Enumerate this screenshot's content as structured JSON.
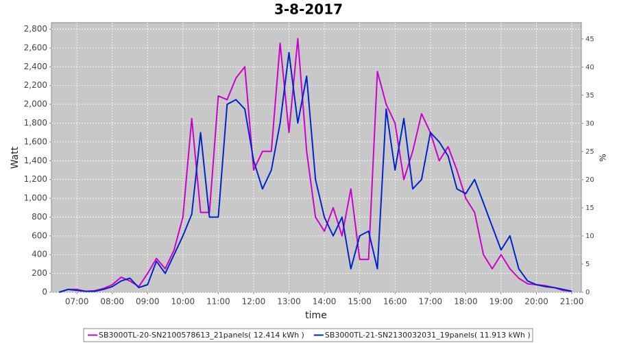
{
  "chart_data": {
    "type": "line",
    "title": "3-8-2017",
    "x_label": "time",
    "y_label": "Watt",
    "y2_label": "%",
    "x": [
      6.5,
      6.75,
      7,
      7.25,
      7.5,
      7.75,
      8,
      8.25,
      8.5,
      8.75,
      9,
      9.25,
      9.5,
      9.75,
      10,
      10.25,
      10.5,
      10.75,
      11,
      11.25,
      11.5,
      11.75,
      12,
      12.25,
      12.5,
      12.75,
      13,
      13.25,
      13.5,
      13.75,
      14,
      14.25,
      14.5,
      14.75,
      15,
      15.25,
      15.5,
      15.75,
      16,
      16.25,
      16.5,
      16.75,
      17,
      17.25,
      17.5,
      17.75,
      18,
      18.25,
      18.5,
      18.75,
      19,
      19.25,
      19.5,
      19.75,
      20,
      20.25,
      20.5,
      20.75,
      21
    ],
    "xlim": [
      6.28,
      21.27
    ],
    "xticks": [
      {
        "value": 7,
        "label": "07:00"
      },
      {
        "value": 8,
        "label": "08:00"
      },
      {
        "value": 9,
        "label": "09:00"
      },
      {
        "value": 10,
        "label": "10:00"
      },
      {
        "value": 11,
        "label": "11:00"
      },
      {
        "value": 12,
        "label": "12:00"
      },
      {
        "value": 13,
        "label": "13:00"
      },
      {
        "value": 14,
        "label": "14:00"
      },
      {
        "value": 15,
        "label": "15:00"
      },
      {
        "value": 16,
        "label": "16:00"
      },
      {
        "value": 17,
        "label": "17:00"
      },
      {
        "value": 18,
        "label": "18:00"
      },
      {
        "value": 19,
        "label": "19:00"
      },
      {
        "value": 20,
        "label": "20:00"
      },
      {
        "value": 21,
        "label": "21:00"
      }
    ],
    "ylim": [
      0,
      2870
    ],
    "yticks": [
      0,
      200,
      400,
      600,
      800,
      {
        "value": 1000,
        "label": "1,000"
      },
      {
        "value": 1200,
        "label": "1,200"
      },
      {
        "value": 1400,
        "label": "1,400"
      },
      {
        "value": 1600,
        "label": "1,600"
      },
      {
        "value": 1800,
        "label": "1,800"
      },
      {
        "value": 2000,
        "label": "2,000"
      },
      {
        "value": 2200,
        "label": "2,200"
      },
      {
        "value": 2400,
        "label": "2,400"
      },
      {
        "value": 2600,
        "label": "2,600"
      },
      {
        "value": 2800,
        "label": "2,800"
      }
    ],
    "y2lim": [
      0,
      47.9
    ],
    "y2ticks": [
      0,
      5,
      10,
      15,
      20,
      25,
      30,
      35,
      40,
      45
    ],
    "grid": true,
    "legend": "bottom",
    "series": [
      {
        "name": "SB3000TL-20-SN2100578613_21panels( 12.414 kWh )",
        "color": "#cc00cc",
        "values": [
          0,
          30,
          30,
          10,
          15,
          40,
          80,
          160,
          120,
          60,
          200,
          360,
          250,
          450,
          800,
          1850,
          850,
          850,
          2090,
          2050,
          2280,
          2400,
          1300,
          1500,
          1500,
          2650,
          1700,
          2700,
          1500,
          800,
          650,
          900,
          600,
          1100,
          350,
          350,
          2350,
          2000,
          1800,
          1200,
          1500,
          1900,
          1700,
          1400,
          1550,
          1300,
          1000,
          850,
          400,
          250,
          400,
          250,
          150,
          90,
          80,
          70,
          50,
          20,
          10
        ]
      },
      {
        "name": "SB3000TL-21-SN2130032031_19panels( 11.913 kWh )",
        "color": "#0022cc",
        "values": [
          0,
          30,
          20,
          10,
          10,
          30,
          60,
          120,
          150,
          50,
          80,
          330,
          200,
          400,
          600,
          830,
          1700,
          800,
          800,
          2000,
          2050,
          1950,
          1400,
          1100,
          1300,
          1800,
          2550,
          1800,
          2300,
          1200,
          800,
          600,
          800,
          250,
          600,
          650,
          250,
          1950,
          1300,
          1850,
          1100,
          1200,
          1700,
          1600,
          1450,
          1100,
          1050,
          1200,
          950,
          700,
          450,
          600,
          250,
          120,
          80,
          60,
          50,
          30,
          10
        ]
      }
    ]
  }
}
